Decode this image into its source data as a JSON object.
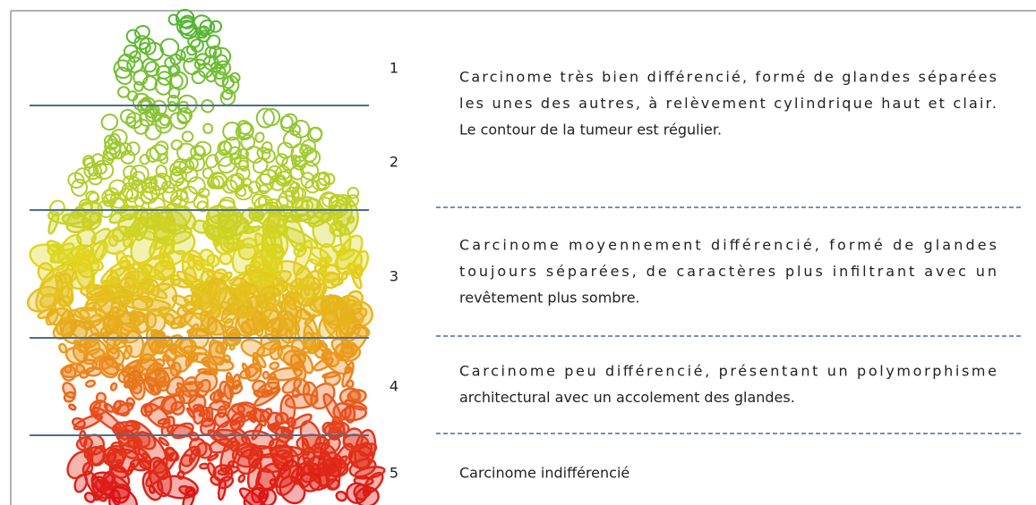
{
  "grades": [
    "1",
    "2",
    "3",
    "4",
    "5"
  ],
  "descriptions": [
    {
      "lines": [
        "Carcinome très bien différencié, formé de glandes séparées",
        "les unes des autres, à relèvement cylindrique haut et clair.",
        "Le contour de la tumeur est régulier."
      ]
    },
    {
      "lines": [
        "Carcinome moyennement différencié, formé de glandes",
        "toujours séparées, de caractères plus infiltrant avec un",
        "revêtement plus sombre."
      ]
    },
    {
      "lines": [
        "Carcinome peu différencié, présentant un polymorphisme",
        "architectural avec un accolement des glandes."
      ]
    },
    {
      "lines": [
        "Carcinome indifférencié"
      ]
    }
  ]
}
